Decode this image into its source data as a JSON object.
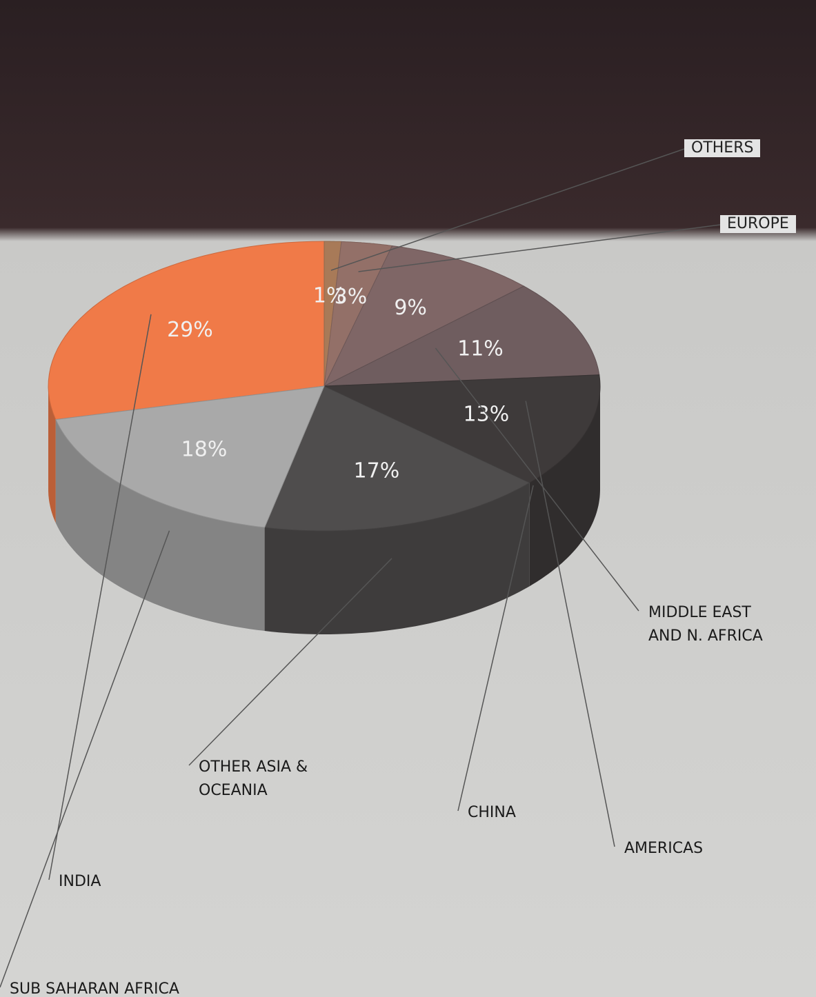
{
  "chart_data": {
    "type": "pie",
    "categories": [
      "INDIA",
      "OTHERS",
      "EUROPE",
      "MIDDLE EAST AND N. AFRICA",
      "AMERICAS",
      "CHINA",
      "OTHER ASIA & OCEANIA",
      "SUB SAHARAN AFRICA"
    ],
    "values": [
      29,
      1,
      3,
      9,
      11,
      13,
      17,
      18
    ],
    "value_labels": [
      "29%",
      "1%",
      "3%",
      "9%",
      "11%",
      "13%",
      "17%",
      "18%"
    ],
    "colors": [
      "#f07a48",
      "#a87a58",
      "#937068",
      "#7f6666",
      "#6f5d5f",
      "#3e3a3a",
      "#4f4d4d",
      "#a9a9a9"
    ]
  }
}
